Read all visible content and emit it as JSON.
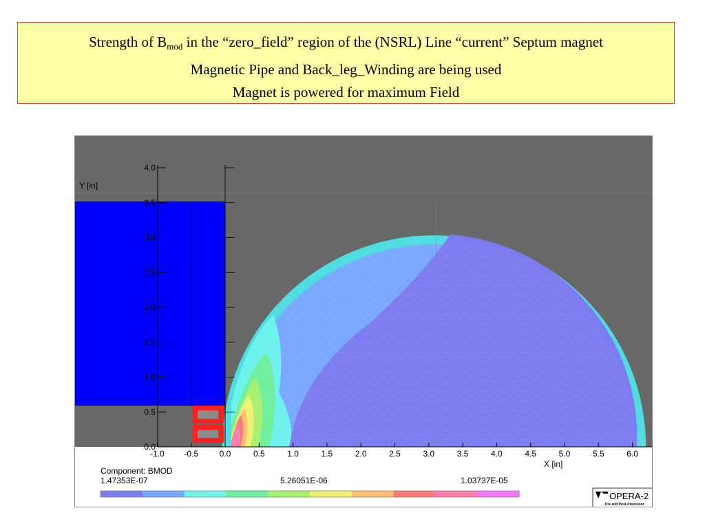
{
  "slide": {
    "title_line1_pre": "Strength of B",
    "title_line1_sub": "mod",
    "title_line1_post": " in the “zero_field” region of the (NSRL) Line “current” Septum  magnet",
    "title_line2": "Magnetic Pipe and Back_leg_Winding are being used",
    "title_line3": "Magnet is powered for maximum Field"
  },
  "plot": {
    "x_axis_label": "X [in]",
    "y_axis_label": "Y [in]",
    "x_ticks": [
      "-1.0",
      "-0.5",
      "0.0",
      "0.5",
      "1.0",
      "1.5",
      "2.0",
      "2.5",
      "3.0",
      "3.5",
      "4.0",
      "4.5",
      "5.0",
      "5.5",
      "6.0"
    ],
    "y_ticks": [
      "0.0",
      "0.5",
      "1.0",
      "1.5",
      "2.0",
      "2.5",
      "3.0",
      "3.5",
      "4.0"
    ],
    "x_range": [
      -1.0,
      6.3
    ],
    "y_range": [
      0.0,
      4.0
    ],
    "component_label": "Component: BMOD",
    "legend_min": "1.47353E-07",
    "legend_mid": "5.26051E-06",
    "legend_max": "1.03737E-05",
    "legend_colors": [
      "#7d7df2",
      "#79a8ff",
      "#6ef2ee",
      "#6fef9c",
      "#a8f070",
      "#eef270",
      "#ffc074",
      "#fa7c78",
      "#fc7fb0",
      "#f37af5"
    ],
    "logo_text": "OPERA-2",
    "logo_subtext": "Pre and Post-Processor",
    "colors": {
      "background": "#686868",
      "magnet_block": "#0000ff",
      "coil": "#ff2020",
      "pipe_shell": "#4fdde0",
      "inner_field": "#7c7cf0"
    }
  }
}
